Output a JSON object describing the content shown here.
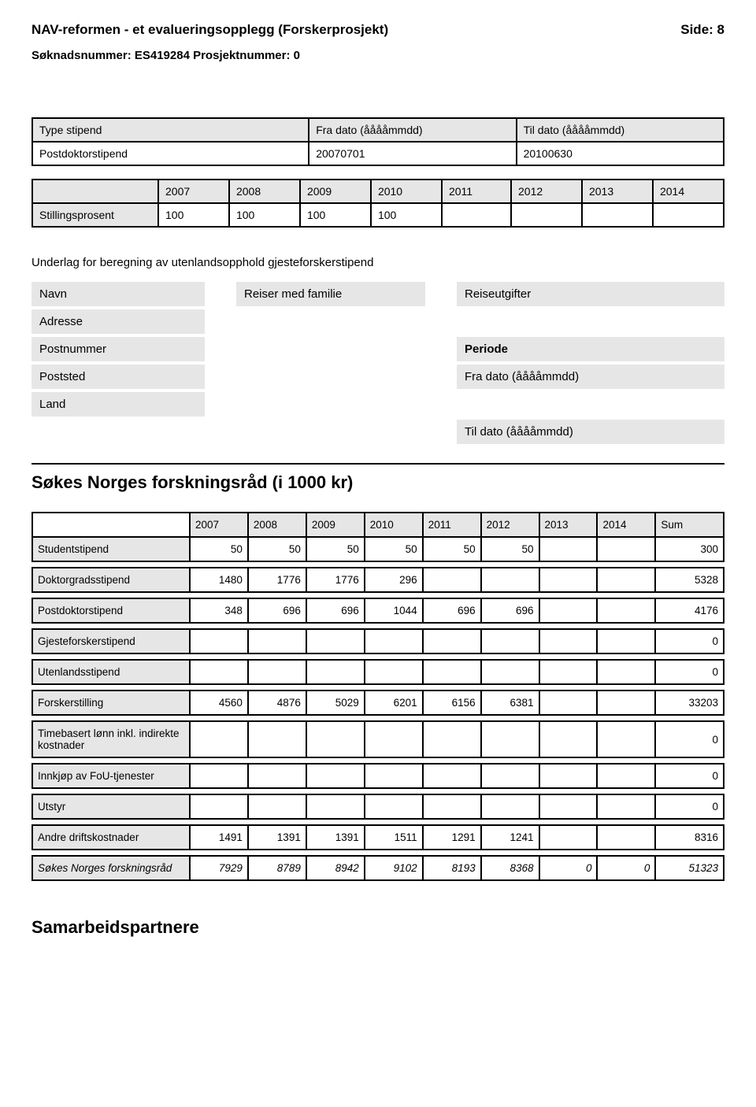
{
  "header": {
    "title": "NAV-reformen - et evalueringsopplegg (Forskerprosjekt)",
    "page_label": "Side: 8",
    "subline": "Søknadsnummer: ES419284 Prosjektnummer: 0"
  },
  "stipend_table": {
    "headers": [
      "Type stipend",
      "Fra dato (ååååmmdd)",
      "Til dato (ååååmmdd)"
    ],
    "rows": [
      [
        "Postdoktorstipend",
        "20070701",
        "20100630"
      ]
    ]
  },
  "year_table": {
    "years": [
      "2007",
      "2008",
      "2009",
      "2010",
      "2011",
      "2012",
      "2013",
      "2014"
    ],
    "row_label": "Stillingsprosent",
    "values": [
      "100",
      "100",
      "100",
      "100",
      "",
      "",
      "",
      ""
    ]
  },
  "underlag_heading": "Underlag for beregning av utenlandsopphold gjesteforskerstipend",
  "info_left": {
    "navn": "Navn",
    "adresse": "Adresse",
    "postnummer": "Postnummer",
    "poststed": "Poststed",
    "land": "Land"
  },
  "info_mid": {
    "reiser": "Reiser med familie"
  },
  "info_right": {
    "reiseutgifter": "Reiseutgifter",
    "periode": "Periode",
    "fra": "Fra dato (ååååmmdd)",
    "til": "Til dato (ååååmmdd)"
  },
  "section_heading": "Søkes Norges forskningsråd (i 1000 kr)",
  "budget": {
    "headers": [
      "2007",
      "2008",
      "2009",
      "2010",
      "2011",
      "2012",
      "2013",
      "2014",
      "Sum"
    ],
    "rows": [
      {
        "label": "Studentstipend",
        "v": [
          "50",
          "50",
          "50",
          "50",
          "50",
          "50",
          "",
          "",
          "300"
        ]
      },
      {
        "label": "Doktorgradsstipend",
        "v": [
          "1480",
          "1776",
          "1776",
          "296",
          "",
          "",
          "",
          "",
          "5328"
        ]
      },
      {
        "label": "Postdoktorstipend",
        "v": [
          "348",
          "696",
          "696",
          "1044",
          "696",
          "696",
          "",
          "",
          "4176"
        ]
      },
      {
        "label": "Gjesteforskerstipend",
        "v": [
          "",
          "",
          "",
          "",
          "",
          "",
          "",
          "",
          "0"
        ]
      },
      {
        "label": "Utenlandsstipend",
        "v": [
          "",
          "",
          "",
          "",
          "",
          "",
          "",
          "",
          "0"
        ]
      },
      {
        "label": "Forskerstilling",
        "v": [
          "4560",
          "4876",
          "5029",
          "6201",
          "6156",
          "6381",
          "",
          "",
          "33203"
        ]
      },
      {
        "label": "Timebasert lønn inkl. indirekte kostnader",
        "v": [
          "",
          "",
          "",
          "",
          "",
          "",
          "",
          "",
          "0"
        ]
      },
      {
        "label": "Innkjøp av FoU-tjenester",
        "v": [
          "",
          "",
          "",
          "",
          "",
          "",
          "",
          "",
          "0"
        ]
      },
      {
        "label": "Utstyr",
        "v": [
          "",
          "",
          "",
          "",
          "",
          "",
          "",
          "",
          "0"
        ]
      },
      {
        "label": "Andre driftskostnader",
        "v": [
          "1491",
          "1391",
          "1391",
          "1511",
          "1291",
          "1241",
          "",
          "",
          "8316"
        ]
      },
      {
        "label": "Søkes Norges forskningsråd",
        "italic": true,
        "v": [
          "7929",
          "8789",
          "8942",
          "9102",
          "8193",
          "8368",
          "0",
          "0",
          "51323"
        ]
      }
    ]
  },
  "footer_heading": "Samarbeidspartnere"
}
